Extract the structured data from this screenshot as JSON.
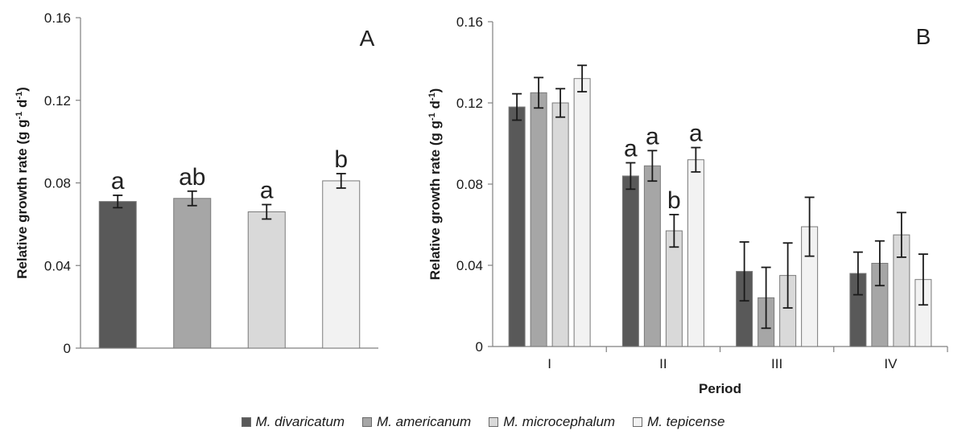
{
  "chart_data": [
    {
      "type": "bar",
      "panel_label": "A",
      "ylabel": "Relative growth rate (g g-1 d-1)",
      "ylabel_parts": {
        "base": "Relative growth rate (g g",
        "sup1": "-1",
        "mid": " d",
        "sup2": "-1",
        "end": ")"
      },
      "ylim": [
        0,
        0.16
      ],
      "yticks": [
        "0",
        "0.04",
        "0.08",
        "0.12",
        "0.16"
      ],
      "categories": [
        "M. divaricatum",
        "M. americanum",
        "M. microcephalum",
        "M. tepicense"
      ],
      "values": [
        0.071,
        0.0725,
        0.066,
        0.081
      ],
      "errors": [
        0.003,
        0.0035,
        0.0035,
        0.0035
      ],
      "significance": [
        "a",
        "ab",
        "a",
        "b"
      ]
    },
    {
      "type": "bar",
      "panel_label": "B",
      "xlabel": "Period",
      "ylabel": "Relative growth rate (g g-1 d-1)",
      "ylabel_parts": {
        "base": "Relative growth rate (g g",
        "sup1": "-1",
        "mid": " d",
        "sup2": "-1",
        "end": ")"
      },
      "ylim": [
        0,
        0.16
      ],
      "yticks": [
        "0",
        "0.04",
        "0.08",
        "0.12",
        "0.16"
      ],
      "categories": [
        "I",
        "II",
        "III",
        "IV"
      ],
      "series": [
        {
          "name": "M. divaricatum",
          "values": [
            0.118,
            0.084,
            0.037,
            0.036
          ],
          "errors": [
            0.0065,
            0.0065,
            0.0145,
            0.0105
          ],
          "significance": [
            "",
            "a",
            "",
            ""
          ]
        },
        {
          "name": "M. americanum",
          "values": [
            0.125,
            0.089,
            0.024,
            0.041
          ],
          "errors": [
            0.0075,
            0.0075,
            0.015,
            0.011
          ],
          "significance": [
            "",
            "a",
            "",
            ""
          ]
        },
        {
          "name": "M. microcephalum",
          "values": [
            0.12,
            0.057,
            0.035,
            0.055
          ],
          "errors": [
            0.007,
            0.008,
            0.016,
            0.011
          ],
          "significance": [
            "",
            "b",
            "",
            ""
          ]
        },
        {
          "name": "M. tepicense",
          "values": [
            0.132,
            0.092,
            0.059,
            0.033
          ],
          "errors": [
            0.0065,
            0.006,
            0.0145,
            0.0125
          ],
          "significance": [
            "",
            "a",
            "",
            ""
          ]
        }
      ]
    }
  ],
  "legend": {
    "items": [
      {
        "label": "M. divaricatum",
        "color": "#595959"
      },
      {
        "label": "M. americanum",
        "color": "#a6a6a6"
      },
      {
        "label": "M. microcephalum",
        "color": "#d9d9d9"
      },
      {
        "label": "M. tepicense",
        "color": "#f2f2f2"
      }
    ]
  },
  "style": {
    "series_colors": [
      "#595959",
      "#a6a6a6",
      "#d9d9d9",
      "#f2f2f2"
    ],
    "bar_stroke": "#7a7a7a",
    "axis_color": "#808080",
    "error_color": "#1a1a1a"
  }
}
